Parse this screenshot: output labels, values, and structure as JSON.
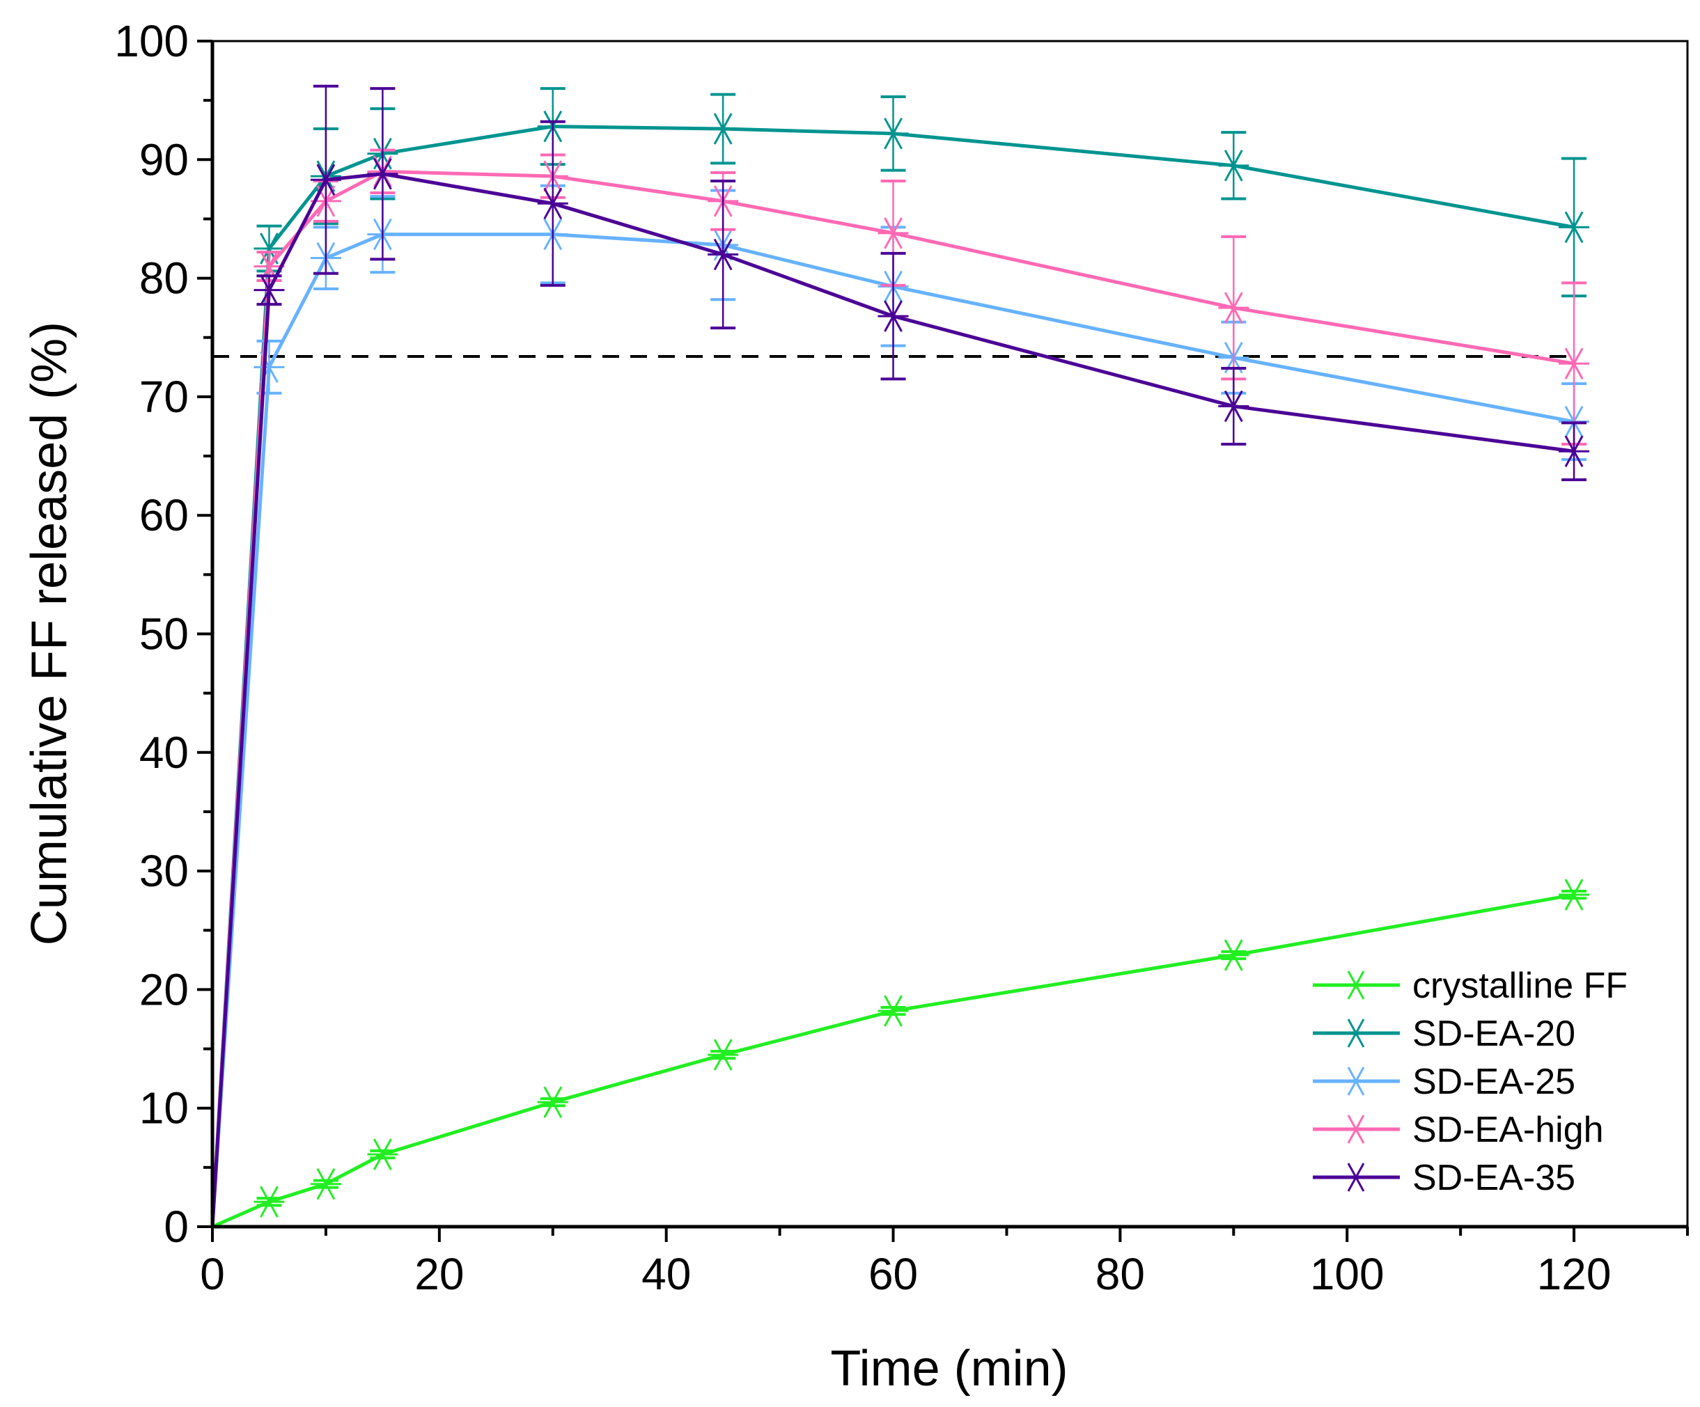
{
  "chart_data": {
    "type": "line",
    "title": "",
    "xlabel": "Time (min)",
    "ylabel": "Cumulative FF released (%)",
    "xlim": [
      0,
      130
    ],
    "ylim": [
      0,
      100
    ],
    "xticks": [
      0,
      20,
      40,
      60,
      80,
      100,
      120
    ],
    "yticks": [
      0,
      10,
      20,
      30,
      40,
      50,
      60,
      70,
      80,
      90,
      100
    ],
    "grid": false,
    "legend_position": "bottom-right",
    "marker": "asterisk",
    "reference_line": {
      "y": 73.4,
      "x_range": [
        0,
        120
      ],
      "style": "dashed",
      "color": "#000000"
    },
    "x": [
      0,
      5,
      10,
      15,
      30,
      45,
      60,
      90,
      120
    ],
    "series": [
      {
        "name": "crystalline FF",
        "color": "#22EE22",
        "values": [
          0,
          2.1,
          3.6,
          6.1,
          10.5,
          14.5,
          18.2,
          22.9,
          28.0
        ],
        "errors": [
          0,
          0.3,
          0.3,
          0.3,
          0.3,
          0.3,
          0.3,
          0.3,
          0.3
        ]
      },
      {
        "name": "SD-EA-20",
        "color": "#009490",
        "values": [
          0,
          82.5,
          88.6,
          90.5,
          92.8,
          92.6,
          92.2,
          89.5,
          84.3
        ],
        "errors": [
          0,
          1.9,
          4.0,
          3.8,
          3.2,
          2.9,
          3.1,
          2.8,
          5.8
        ]
      },
      {
        "name": "SD-EA-25",
        "color": "#66B2FF",
        "values": [
          0,
          72.5,
          81.7,
          83.7,
          83.7,
          82.8,
          79.3,
          73.3,
          67.9
        ],
        "errors": [
          0,
          2.2,
          2.6,
          3.2,
          4.1,
          4.6,
          5.0,
          3.0,
          3.2
        ]
      },
      {
        "name": "SD-EA-high",
        "color": "#FF69B4",
        "values": [
          0,
          81.0,
          86.5,
          89.0,
          88.6,
          86.5,
          83.8,
          77.5,
          72.8
        ],
        "errors": [
          0,
          1.2,
          1.7,
          1.8,
          1.8,
          2.4,
          4.4,
          6.0,
          6.8
        ]
      },
      {
        "name": "SD-EA-35",
        "color": "#4B0096",
        "values": [
          0,
          79.0,
          88.3,
          88.8,
          86.3,
          82.0,
          76.8,
          69.2,
          65.4
        ],
        "errors": [
          0,
          1.2,
          7.9,
          7.2,
          6.9,
          6.2,
          5.3,
          3.2,
          2.4
        ]
      }
    ]
  }
}
